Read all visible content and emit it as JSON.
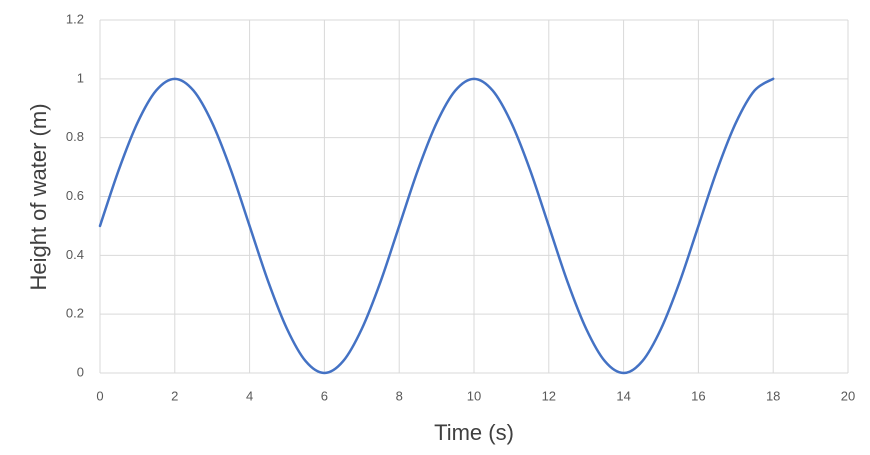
{
  "chart_data": {
    "type": "line",
    "xlabel": "Time (s)",
    "ylabel": "Height of water (m)",
    "x": [
      0,
      0.5,
      1,
      1.5,
      2,
      2.5,
      3,
      3.5,
      4,
      4.5,
      5,
      5.5,
      6,
      6.5,
      7,
      7.5,
      8,
      8.5,
      9,
      9.5,
      10,
      10.5,
      11,
      11.5,
      12,
      12.5,
      13,
      13.5,
      14,
      14.5,
      15,
      15.5,
      16,
      16.5,
      17,
      17.5,
      18
    ],
    "series": [
      {
        "color": "#4472c4",
        "values": [
          0.5,
          0.69,
          0.85,
          0.96,
          1,
          0.96,
          0.85,
          0.69,
          0.5,
          0.31,
          0.15,
          0.04,
          0,
          0.04,
          0.15,
          0.31,
          0.5,
          0.69,
          0.85,
          0.96,
          1,
          0.96,
          0.85,
          0.69,
          0.5,
          0.31,
          0.15,
          0.04,
          0,
          0.04,
          0.15,
          0.31,
          0.5,
          0.69,
          0.85,
          0.96,
          1
        ]
      }
    ],
    "xlim": [
      0,
      20
    ],
    "xticks": [
      0,
      2,
      4,
      6,
      8,
      10,
      12,
      14,
      16,
      18,
      20
    ],
    "ylim": [
      0,
      1.2
    ],
    "yticks": [
      0,
      0.2,
      0.4,
      0.6,
      0.8,
      1,
      1.2
    ],
    "grid": true
  }
}
